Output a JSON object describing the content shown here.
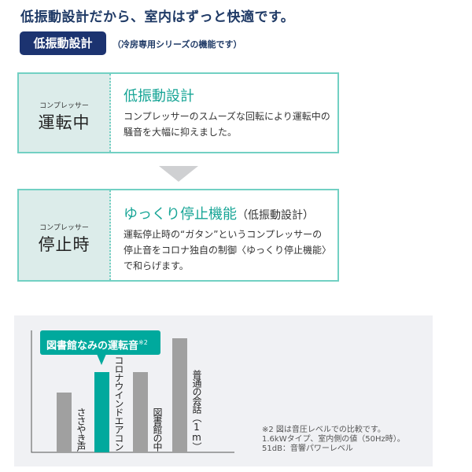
{
  "header": {
    "title": "低振動設計だから、室内はずっと快適です。",
    "badge": "低振動設計",
    "badge_note": "（冷房専用シリーズの機能です）"
  },
  "cards": [
    {
      "label_small": "コンプレッサー",
      "label_big": "運転中",
      "heading": "低振動設計",
      "heading_sub": "",
      "text": "コンプレッサーのスムーズな回転により運転中の騒音を大幅に抑えました。"
    },
    {
      "label_small": "コンプレッサー",
      "label_big": "停止時",
      "heading": "ゆっくり停止機能",
      "heading_sub": "（低振動設計）",
      "text": "運転停止時の“ガタン”というコンプレッサーの停止音をコロナ独自の制御〈ゆっくり停止機能〉で和らげます。"
    }
  ],
  "chart_data": {
    "type": "bar",
    "categories": [
      "ささやき声",
      "コロナウインドエアコン",
      "図書館の中",
      "普通の会話（1m）"
    ],
    "values": [
      76,
      102,
      102,
      145
    ],
    "colors": [
      "#a0a0a0",
      "#00a99d",
      "#a0a0a0",
      "#a0a0a0"
    ],
    "ylim": [
      0,
      155
    ],
    "grid": false,
    "callout": {
      "text": "図書館なみの運転音",
      "note_mark": "※2"
    }
  },
  "footnote": [
    "※2 図は音圧レベルでの比較です。",
    "1.6kWタイプ、室内側の値（50Hz時）。",
    "51dB：音響パワーレベル"
  ]
}
